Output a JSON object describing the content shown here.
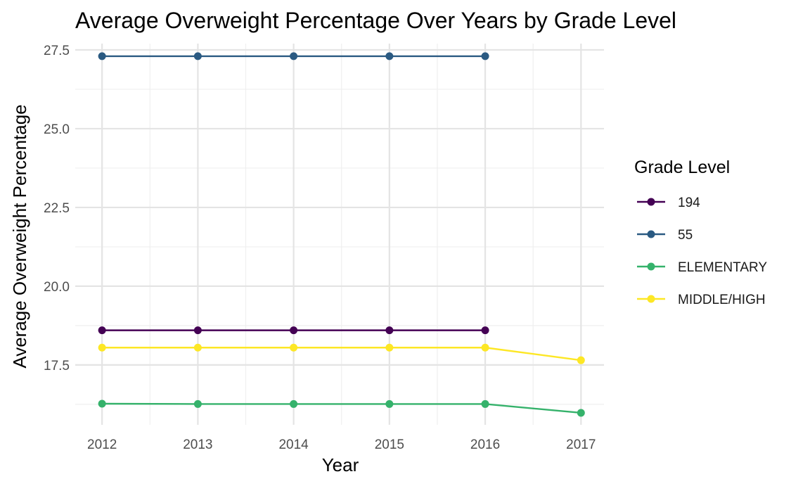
{
  "chart_data": {
    "type": "line",
    "title": "Average Overweight Percentage Over Years by Grade Level",
    "xlabel": "Year",
    "ylabel": "Average Overweight Percentage",
    "x": [
      2012,
      2013,
      2014,
      2015,
      2016,
      2017
    ],
    "x_ticks": [
      "2012",
      "2013",
      "2014",
      "2015",
      "2016",
      "2017"
    ],
    "xlim": [
      2011.72,
      2017.24
    ],
    "y_ticks": [
      "17.5",
      "20.0",
      "22.5",
      "25.0",
      "27.5"
    ],
    "ylim": [
      15.6,
      27.7
    ],
    "grid": true,
    "legend": {
      "title": "Grade Level",
      "placement": "right"
    },
    "series": [
      {
        "name": "194",
        "color": "#440154",
        "values": [
          18.6,
          18.6,
          18.6,
          18.6,
          18.6,
          null
        ]
      },
      {
        "name": "55",
        "color": "#2a5a82",
        "values": [
          27.3,
          27.3,
          27.3,
          27.3,
          27.3,
          null
        ]
      },
      {
        "name": "ELEMENTARY",
        "color": "#35b26b",
        "values": [
          16.27,
          16.26,
          16.26,
          16.26,
          16.26,
          15.98
        ]
      },
      {
        "name": "MIDDLE/HIGH",
        "color": "#fde725",
        "values": [
          18.05,
          18.05,
          18.05,
          18.05,
          18.05,
          17.65
        ]
      }
    ]
  }
}
